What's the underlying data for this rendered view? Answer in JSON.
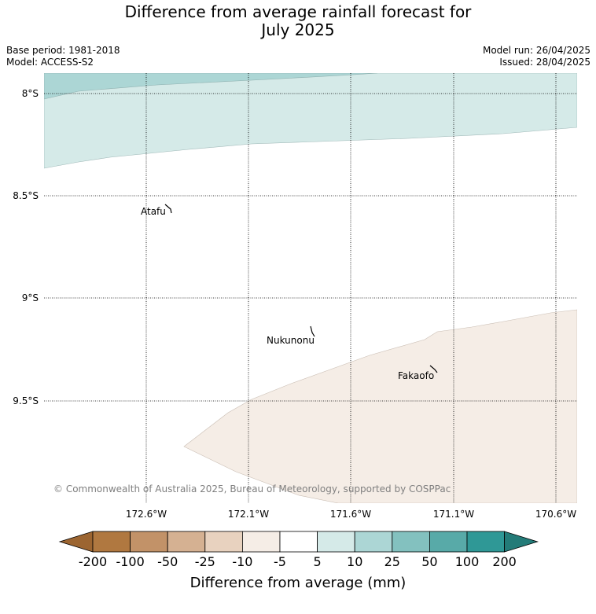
{
  "title_line1": "Difference from average rainfall forecast for",
  "title_line2": "July 2025",
  "base_period": "Base period: 1981-2018",
  "model": "Model: ACCESS-S2",
  "model_run": "Model run: 26/04/2025",
  "issued": "Issued: 28/04/2025",
  "copyright": "© Commonwealth of Australia 2025, Bureau of Meteorology, supported by COSPPac",
  "latitude_labels": [
    "8°S",
    "8.5°S",
    "9°S",
    "9.5°S"
  ],
  "longitude_labels": [
    "172.6°W",
    "172.1°W",
    "171.6°W",
    "171.1°W",
    "170.6°W"
  ],
  "places": [
    {
      "name": "Atafu"
    },
    {
      "name": "Nukunonu"
    },
    {
      "name": "Fakaofo"
    }
  ],
  "colorbar": {
    "label": "Difference from average (mm)",
    "ticks": [
      "-200",
      "-100",
      "-50",
      "-25",
      "-10",
      "-5",
      "5",
      "10",
      "25",
      "50",
      "100",
      "200"
    ],
    "colors": [
      "#9c6531",
      "#b07840",
      "#c29268",
      "#d5b192",
      "#e8d2bf",
      "#f5ede6",
      "#ffffff",
      "#d5eae8",
      "#acd6d5",
      "#83c1bf",
      "#58aaa8",
      "#2f9896",
      "#237b78"
    ]
  },
  "shading": {
    "wetter_light": "#d5eae8",
    "wetter_medium": "#acd6d5",
    "drier_light": "#f5ede6"
  }
}
